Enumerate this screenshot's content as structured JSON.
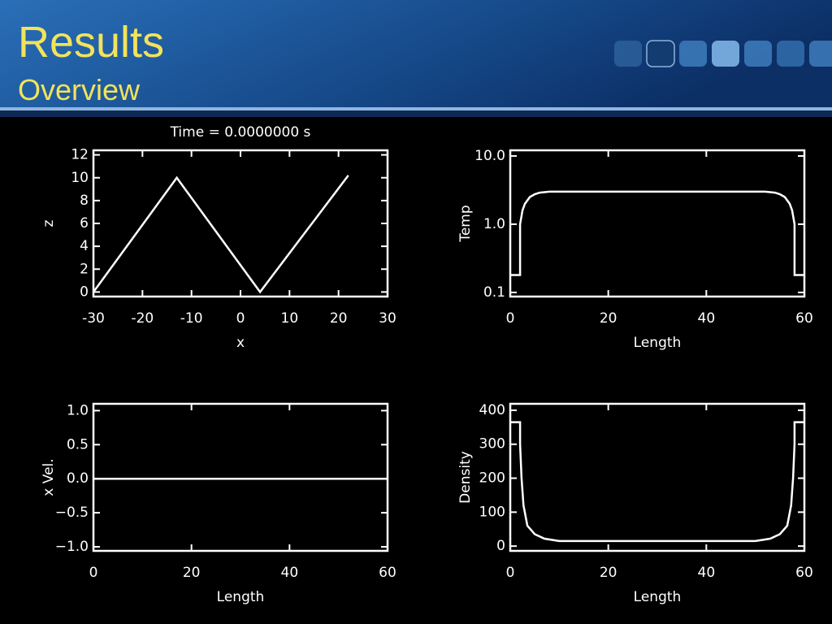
{
  "header": {
    "title": "Results",
    "subtitle": "Overview"
  },
  "chart_data": [
    {
      "type": "line",
      "title": "Time = 0.0000000 s",
      "xlabel": "x",
      "ylabel": "z",
      "color": "#ffffff",
      "x": [
        -30,
        -13,
        4,
        22
      ],
      "values": [
        0,
        10,
        0,
        10.2
      ],
      "xlim": [
        -30,
        30
      ],
      "xticks": [
        -30,
        -20,
        -10,
        0,
        10,
        20,
        30
      ],
      "ylim": [
        -0.4,
        12.4
      ],
      "yticks": [
        0,
        2,
        4,
        6,
        8,
        10,
        12
      ]
    },
    {
      "type": "line",
      "xlabel": "Length",
      "ylabel": "Temp",
      "color": "#ffffff",
      "yscale": "log",
      "x": [
        0,
        2,
        2,
        2.5,
        3,
        4,
        5,
        6,
        8,
        52,
        54,
        55,
        56,
        57,
        57.5,
        58,
        58,
        60
      ],
      "values": [
        0.18,
        0.18,
        1.0,
        1.6,
        2.0,
        2.5,
        2.75,
        2.9,
        3.0,
        3.0,
        2.9,
        2.75,
        2.5,
        2.0,
        1.6,
        1.0,
        0.18,
        0.18
      ],
      "xlim": [
        0,
        60
      ],
      "xticks": [
        0,
        20,
        40,
        60
      ],
      "ylim": [
        0.087,
        12.1
      ],
      "yticks": [
        {
          "value": 10,
          "label": "10.0"
        },
        {
          "value": 1,
          "label": "1.0"
        },
        0.1
      ]
    },
    {
      "type": "line",
      "xlabel": "Length",
      "ylabel": "x Vel.",
      "color": "#ffffff",
      "x": [
        0,
        60
      ],
      "values": [
        0,
        0
      ],
      "xlim": [
        0,
        60
      ],
      "xticks": [
        0,
        20,
        40,
        60
      ],
      "ylim": [
        -1.06,
        1.1
      ],
      "yticks": [
        {
          "value": 1,
          "label": "1.0"
        },
        {
          "value": 0.5,
          "label": "0.5"
        },
        {
          "value": 0,
          "label": "0.0"
        },
        {
          "value": -0.5,
          "label": "−0.5"
        },
        {
          "value": -1,
          "label": "−1.0"
        }
      ]
    },
    {
      "type": "line",
      "xlabel": "Length",
      "ylabel": "Density",
      "color": "#ffffff",
      "x": [
        0,
        2,
        2,
        2.3,
        2.7,
        3.5,
        5,
        7,
        10,
        50,
        53,
        55,
        56.5,
        57.3,
        57.7,
        58,
        58,
        60
      ],
      "values": [
        365,
        365,
        300,
        200,
        120,
        60,
        35,
        22,
        15,
        15,
        22,
        35,
        60,
        120,
        200,
        300,
        365,
        365
      ],
      "xlim": [
        0,
        60
      ],
      "xticks": [
        0,
        20,
        40,
        60
      ],
      "ylim": [
        -14,
        419
      ],
      "yticks": [
        0,
        100,
        200,
        300,
        400
      ]
    }
  ]
}
